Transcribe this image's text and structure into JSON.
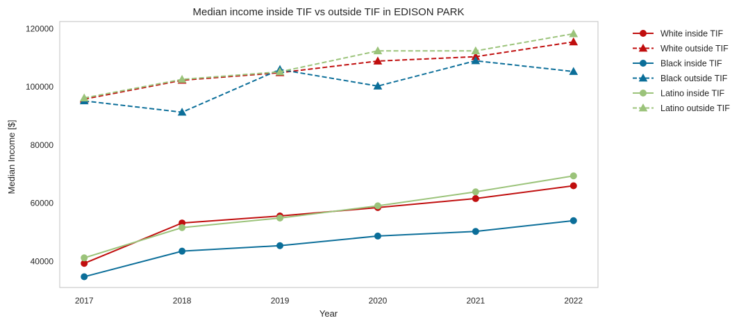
{
  "chart_data": {
    "type": "line",
    "title": "Median income inside TIF vs outside TIF in EDISON PARK",
    "xlabel": "Year",
    "ylabel": "Median Income [$]",
    "x": [
      2017,
      2018,
      2019,
      2020,
      2021,
      2022
    ],
    "x_tick_labels": [
      "2017",
      "2018",
      "2019",
      "2020",
      "2021",
      "2022"
    ],
    "xlim": [
      2016.75,
      2022.25
    ],
    "ylim": [
      31000,
      122500
    ],
    "y_ticks": [
      40000,
      60000,
      80000,
      100000,
      120000
    ],
    "y_tick_labels": [
      "40000",
      "60000",
      "80000",
      "100000",
      "120000"
    ],
    "grid": false,
    "legend_position": "outside-right-top",
    "series": [
      {
        "name": "White inside TIF",
        "values": [
          39300,
          53200,
          55600,
          58500,
          61600,
          66000
        ],
        "color": "#c00e0e",
        "linestyle": "solid",
        "marker": "circle"
      },
      {
        "name": "White outside TIF",
        "values": [
          95800,
          102300,
          104900,
          108900,
          110400,
          115500
        ],
        "color": "#c00e0e",
        "linestyle": "dashed",
        "marker": "triangle"
      },
      {
        "name": "Black inside TIF",
        "values": [
          34700,
          43500,
          45400,
          48700,
          50300,
          54000
        ],
        "color": "#0b6e99",
        "linestyle": "solid",
        "marker": "circle"
      },
      {
        "name": "Black outside TIF",
        "values": [
          95200,
          91300,
          106000,
          100300,
          109000,
          105300
        ],
        "color": "#0b6e99",
        "linestyle": "dashed",
        "marker": "triangle"
      },
      {
        "name": "Latino inside TIF",
        "values": [
          41200,
          51600,
          54900,
          59100,
          63900,
          69400
        ],
        "color": "#9bc37a",
        "linestyle": "solid",
        "marker": "circle"
      },
      {
        "name": "Latino outside TIF",
        "values": [
          96200,
          102600,
          105200,
          112400,
          112400,
          118300
        ],
        "color": "#9bc37a",
        "linestyle": "dashed",
        "marker": "triangle"
      }
    ]
  }
}
